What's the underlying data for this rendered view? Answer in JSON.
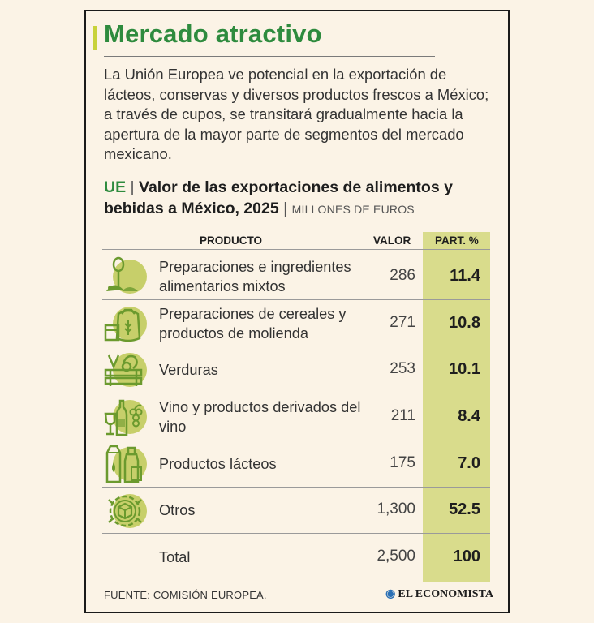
{
  "header": {
    "title": "Mercado atractivo",
    "intro": "La Unión Europea ve potencial en la exportación de lácteos, conservas y diversos productos frescos a México; a través de cupos, se transitará gradualmente hacia la apertura de la mayor parte de segmentos del mercado mexicano."
  },
  "subtitle": {
    "prefix": "UE",
    "separator": "|",
    "text": "Valor de las exportaciones de alimentos y bebidas a México, 2025",
    "separator2": "|",
    "unit": "MILLONES DE EUROS"
  },
  "colors": {
    "accent_green": "#2e8b3e",
    "highlight": "#d9dc8c",
    "icon_green": "#6b9a2e",
    "icon_fill": "#c7cf6a"
  },
  "chart_data": {
    "type": "table",
    "columns": [
      "PRODUCTO",
      "VALOR",
      "PART. %"
    ],
    "rows": [
      {
        "icon": "whisk-ingredients-icon",
        "product": "Preparaciones e ingredientes alimentarios mixtos",
        "value": "286",
        "pct": "11.4"
      },
      {
        "icon": "flour-sack-icon",
        "product": "Preparaciones de cereales y productos de molienda",
        "value": "271",
        "pct": "10.8"
      },
      {
        "icon": "vegetable-crate-icon",
        "product": "Verduras",
        "value": "253",
        "pct": "10.1"
      },
      {
        "icon": "wine-grapes-icon",
        "product": "Vino y productos derivados del vino",
        "value": "211",
        "pct": "8.4"
      },
      {
        "icon": "dairy-products-icon",
        "product": "Productos lácteos",
        "value": "175",
        "pct": "7.0"
      },
      {
        "icon": "gear-box-icon",
        "product": "Otros",
        "value": "1,300",
        "pct": "52.5"
      }
    ],
    "total": {
      "label": "Total",
      "value": "2,500",
      "pct": "100"
    }
  },
  "footer": {
    "source": "FUENTE: COMISIÓN EUROPEA.",
    "brand": "EL ECONOMISTA",
    "brand_icon": "economista-logo-icon"
  }
}
